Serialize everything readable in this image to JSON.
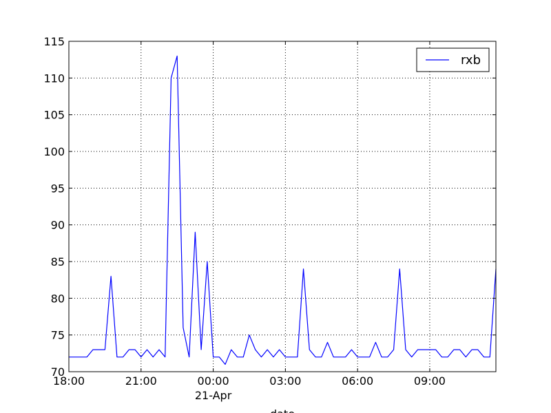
{
  "chart_data": {
    "type": "line",
    "title": "",
    "xlabel": "date",
    "ylabel": "",
    "ylim": [
      70,
      115
    ],
    "y_ticks": [
      70,
      75,
      80,
      85,
      90,
      95,
      100,
      105,
      110,
      115
    ],
    "x_range": [
      "2015-04-20 18:00",
      "2015-04-21 11:45"
    ],
    "x_ticks": [
      {
        "time": "2015-04-20 18:00",
        "label": "18:00"
      },
      {
        "time": "2015-04-20 21:00",
        "label": "21:00"
      },
      {
        "time": "2015-04-21 00:00",
        "label": "00:00",
        "sublabel": "21-Apr"
      },
      {
        "time": "2015-04-21 03:00",
        "label": "03:00"
      },
      {
        "time": "2015-04-21 06:00",
        "label": "06:00"
      },
      {
        "time": "2015-04-21 09:00",
        "label": "09:00"
      }
    ],
    "grid": true,
    "legend_position": "top-right",
    "colors": {
      "line": "#0000ff"
    },
    "series": [
      {
        "name": "rxb",
        "sample_interval_minutes": 15,
        "start": "2015-04-20 18:00",
        "values": [
          72,
          72,
          72,
          72,
          73,
          73,
          73,
          83,
          72,
          72,
          73,
          73,
          72,
          73,
          72,
          73,
          72,
          110,
          113,
          76,
          72,
          89,
          73,
          85,
          72,
          72,
          71,
          73,
          72,
          72,
          75,
          73,
          72,
          73,
          72,
          73,
          72,
          72,
          72,
          84,
          73,
          72,
          72,
          74,
          72,
          72,
          72,
          73,
          72,
          72,
          72,
          74,
          72,
          72,
          73,
          84,
          73,
          72,
          73,
          73,
          73,
          73,
          72,
          72,
          73,
          73,
          72,
          73,
          73,
          72,
          72,
          84
        ]
      }
    ]
  }
}
